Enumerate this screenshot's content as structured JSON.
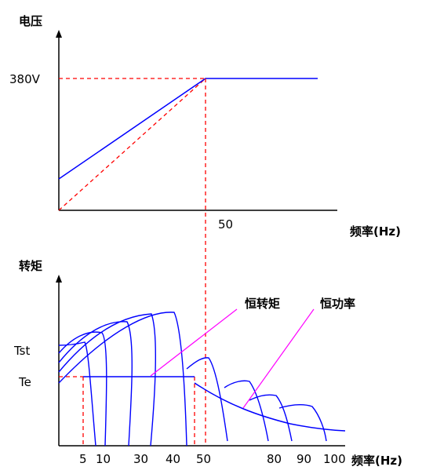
{
  "top_chart": {
    "y_label": "电压",
    "x_label": "频率(Hz)",
    "voltage_mark": "380V",
    "freq_mark": "50"
  },
  "bottom_chart": {
    "y_label": "转矩",
    "x_label": "频率(Hz)",
    "tst_label": "Tst",
    "te_label": "Te",
    "annotation_constant_torque": "恒转矩",
    "annotation_constant_power": "恒功率",
    "x_ticks": [
      "5",
      "10",
      "30",
      "40",
      "50",
      "80",
      "90",
      "100"
    ]
  },
  "colors": {
    "curve": "#0000ff",
    "guide": "#ff0000",
    "annotation": "#ff00ff",
    "axis": "#000000"
  }
}
